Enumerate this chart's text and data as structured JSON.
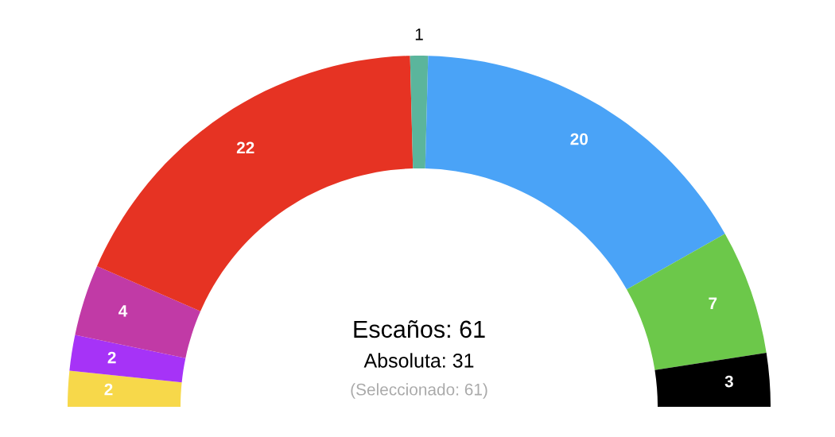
{
  "chart_data": {
    "type": "donut",
    "categories": [
      null,
      null,
      null,
      null,
      null,
      null,
      null,
      null
    ],
    "values": [
      2,
      2,
      4,
      22,
      1,
      20,
      7,
      3
    ],
    "colors": [
      "#f7d84a",
      "#a633f7",
      "#c13aa6",
      "#e63323",
      "#5bb59c",
      "#4aa3f7",
      "#6cc84a",
      "#000000"
    ],
    "data_labels": true,
    "annotations": [
      "Escaños: 61",
      "Absoluta: 31",
      "(Seleccionado: 61)"
    ]
  }
}
